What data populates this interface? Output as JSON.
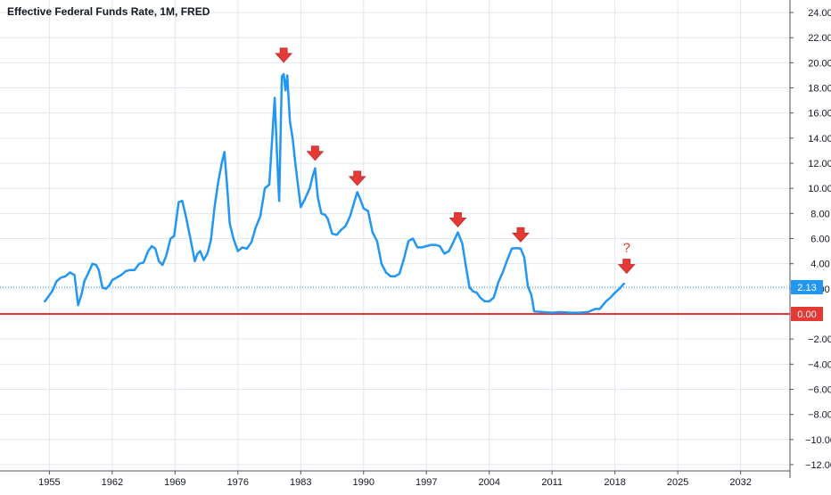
{
  "chart_data": {
    "type": "line",
    "title": "Effective Federal Funds Rate, 1M, FRED",
    "xlabel": "",
    "ylabel": "",
    "xlim": [
      1949.5,
      2037.5
    ],
    "ylim": [
      -12.5,
      25
    ],
    "grid": true,
    "y_axis_position": "right",
    "x_ticks": [
      1955,
      1962,
      1969,
      1976,
      1983,
      1990,
      1997,
      2004,
      2011,
      2018,
      2025,
      2032
    ],
    "x_tick_labels": [
      "1955",
      "1962",
      "1969",
      "1976",
      "1983",
      "1990",
      "1997",
      "2004",
      "2011",
      "2018",
      "2025",
      "2032"
    ],
    "y_ticks": [
      24,
      22,
      20,
      18,
      16,
      14,
      12,
      10,
      8,
      6,
      4,
      2,
      -2,
      -4,
      -6,
      -8,
      -10,
      -12
    ],
    "y_tick_labels": [
      "24.00",
      "22.00",
      "20.00",
      "18.00",
      "16.00",
      "14.00",
      "12.00",
      "10.00",
      "8.00",
      "6.00",
      "4.00",
      "2.00",
      "−2.00",
      "−4.00",
      "−6.00",
      "−8.00",
      "−10.00",
      "−12.00"
    ],
    "series": [
      {
        "color": "#2196F3",
        "x": [
          1954.5,
          1954.9,
          1955.3,
          1955.8,
          1956.3,
          1956.8,
          1957.3,
          1957.8,
          1958.2,
          1958.6,
          1958.9,
          1959.3,
          1959.8,
          1960.2,
          1960.5,
          1960.9,
          1961.3,
          1961.7,
          1962.0,
          1962.5,
          1963.0,
          1963.5,
          1964.0,
          1964.5,
          1965.0,
          1965.5,
          1966.0,
          1966.4,
          1966.8,
          1967.2,
          1967.6,
          1968.0,
          1968.5,
          1968.9,
          1969.4,
          1969.8,
          1970.2,
          1970.6,
          1970.9,
          1971.2,
          1971.5,
          1971.8,
          1972.2,
          1972.6,
          1973.0,
          1973.4,
          1973.8,
          1974.2,
          1974.5,
          1974.8,
          1975.1,
          1975.5,
          1976.0,
          1976.5,
          1977.0,
          1977.5,
          1978.0,
          1978.5,
          1979.0,
          1979.5,
          1979.8,
          1980.1,
          1980.4,
          1980.6,
          1980.9,
          1981.1,
          1981.3,
          1981.5,
          1981.8,
          1982.1,
          1982.4,
          1982.7,
          1983.0,
          1983.5,
          1984.0,
          1984.3,
          1984.6,
          1984.9,
          1985.3,
          1985.7,
          1986.0,
          1986.5,
          1987.0,
          1987.5,
          1988.0,
          1988.5,
          1989.0,
          1989.3,
          1989.6,
          1990.0,
          1990.5,
          1991.0,
          1991.5,
          1992.0,
          1992.5,
          1993.0,
          1993.5,
          1994.0,
          1994.5,
          1995.0,
          1995.5,
          1996.0,
          1996.5,
          1997.0,
          1997.5,
          1998.0,
          1998.5,
          1999.0,
          1999.5,
          2000.0,
          2000.5,
          2001.0,
          2001.4,
          2001.8,
          2002.2,
          2002.6,
          2003.0,
          2003.5,
          2004.0,
          2004.5,
          2005.0,
          2005.5,
          2006.0,
          2006.5,
          2007.0,
          2007.5,
          2007.9,
          2008.3,
          2008.7,
          2009.0,
          2010.0,
          2011.0,
          2012.0,
          2013.0,
          2014.0,
          2015.0,
          2015.8,
          2016.3,
          2017.0,
          2017.5,
          2018.0,
          2018.5,
          2019.0
        ],
        "values": [
          1.0,
          1.4,
          1.8,
          2.6,
          2.9,
          3.0,
          3.3,
          3.1,
          0.7,
          1.6,
          2.6,
          3.2,
          4.0,
          3.9,
          3.5,
          2.1,
          2.0,
          2.3,
          2.7,
          2.9,
          3.1,
          3.4,
          3.5,
          3.5,
          4.0,
          4.1,
          5.0,
          5.4,
          5.2,
          4.2,
          3.9,
          4.6,
          6.0,
          6.2,
          8.9,
          9.0,
          7.8,
          6.4,
          5.3,
          4.2,
          4.8,
          5.0,
          4.3,
          4.8,
          5.9,
          8.5,
          10.5,
          12.0,
          12.9,
          10.2,
          7.2,
          6.0,
          5.0,
          5.3,
          5.2,
          5.7,
          6.9,
          7.8,
          10.0,
          10.3,
          13.8,
          17.2,
          12.0,
          9.0,
          18.9,
          19.1,
          17.8,
          19.0,
          15.3,
          14.0,
          12.0,
          10.2,
          8.5,
          9.2,
          10.0,
          10.9,
          11.6,
          9.3,
          8.0,
          7.9,
          7.6,
          6.4,
          6.3,
          6.7,
          7.0,
          7.8,
          9.0,
          9.7,
          9.2,
          8.4,
          8.2,
          6.5,
          5.8,
          4.0,
          3.3,
          3.0,
          3.0,
          3.2,
          4.4,
          5.8,
          6.0,
          5.3,
          5.3,
          5.4,
          5.5,
          5.5,
          5.4,
          4.8,
          5.0,
          5.7,
          6.5,
          5.6,
          3.8,
          2.1,
          1.8,
          1.7,
          1.3,
          1.0,
          1.0,
          1.3,
          2.5,
          3.3,
          4.3,
          5.2,
          5.25,
          5.2,
          4.5,
          2.2,
          1.5,
          0.2,
          0.15,
          0.1,
          0.15,
          0.1,
          0.1,
          0.15,
          0.4,
          0.4,
          1.0,
          1.3,
          1.7,
          2.0,
          2.4
        ]
      }
    ],
    "reference_lines": [
      {
        "value": 2.13,
        "label": "2.13",
        "color": "#2196F3",
        "style": "dotted"
      },
      {
        "value": 0.0,
        "label": "0.00",
        "color": "#E53935",
        "style": "solid"
      }
    ],
    "annotations": [
      {
        "type": "arrow-down",
        "x": 1981.1,
        "y": 20.6,
        "color": "#E53935"
      },
      {
        "type": "arrow-down",
        "x": 1984.6,
        "y": 12.8,
        "color": "#E53935"
      },
      {
        "type": "arrow-down",
        "x": 1989.3,
        "y": 10.8,
        "color": "#E53935"
      },
      {
        "type": "arrow-down",
        "x": 2000.5,
        "y": 7.5,
        "color": "#E53935"
      },
      {
        "type": "arrow-down",
        "x": 2007.5,
        "y": 6.3,
        "color": "#E53935"
      },
      {
        "type": "arrow-down",
        "x": 2019.3,
        "y": 3.8,
        "color": "#E53935"
      },
      {
        "type": "text",
        "x": 2019.3,
        "y": 5.3,
        "text": "?",
        "color": "#E53935"
      }
    ]
  }
}
